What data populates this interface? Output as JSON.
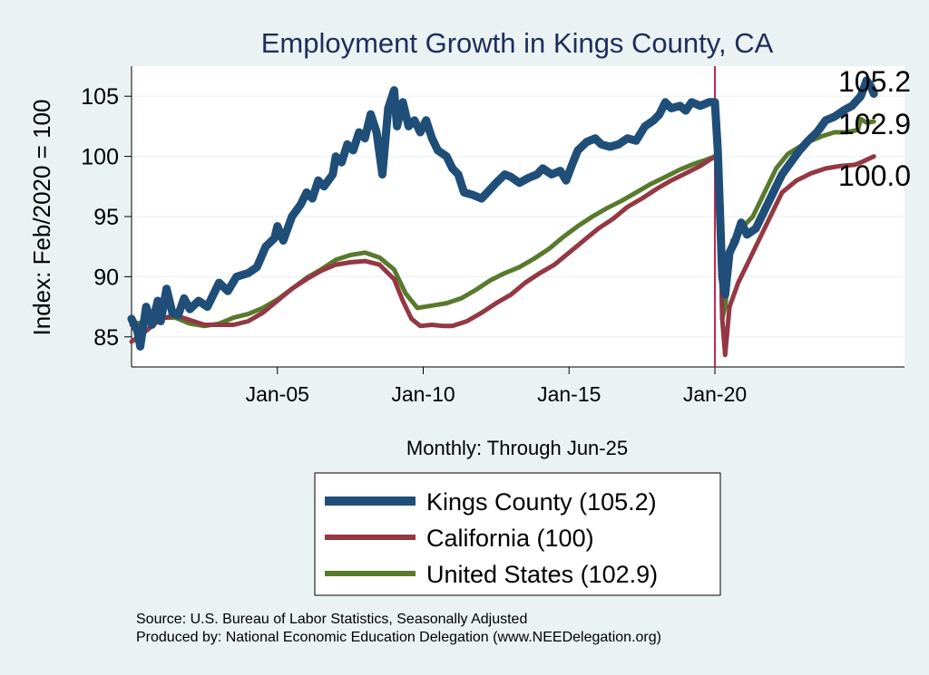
{
  "chart_data": {
    "type": "line",
    "title": "Employment Growth in Kings  County, CA",
    "ylabel": "Index: Feb/2020 = 100",
    "xlabel": "Monthly: Through Jun-25",
    "xlim": [
      2000.0,
      2026.5
    ],
    "ylim": [
      82.5,
      107.5
    ],
    "x_ticks": [
      {
        "x": 2005,
        "label": "Jan-05"
      },
      {
        "x": 2010,
        "label": "Jan-10"
      },
      {
        "x": 2015,
        "label": "Jan-15"
      },
      {
        "x": 2020,
        "label": "Jan-20"
      }
    ],
    "y_ticks": [
      85,
      90,
      95,
      100,
      105
    ],
    "vline_x": 2020.0,
    "end_labels": [
      "105.2",
      "102.9",
      "100.0"
    ],
    "series": [
      {
        "name": "Kings  County (105.2)",
        "color": "#1f4e79",
        "width": 9,
        "points": [
          [
            2000.0,
            86.5
          ],
          [
            2000.2,
            85.5
          ],
          [
            2000.3,
            84.2
          ],
          [
            2000.5,
            87.5
          ],
          [
            2000.7,
            86.0
          ],
          [
            2000.9,
            88.0
          ],
          [
            2001.0,
            86.3
          ],
          [
            2001.2,
            89.0
          ],
          [
            2001.4,
            87.0
          ],
          [
            2001.6,
            86.8
          ],
          [
            2001.8,
            88.2
          ],
          [
            2002.0,
            87.3
          ],
          [
            2002.3,
            88.0
          ],
          [
            2002.6,
            87.5
          ],
          [
            2003.0,
            89.5
          ],
          [
            2003.3,
            88.8
          ],
          [
            2003.6,
            90.0
          ],
          [
            2004.0,
            90.3
          ],
          [
            2004.3,
            90.8
          ],
          [
            2004.6,
            92.5
          ],
          [
            2004.9,
            93.2
          ],
          [
            2005.0,
            94.2
          ],
          [
            2005.2,
            93.0
          ],
          [
            2005.5,
            95.0
          ],
          [
            2005.8,
            96.0
          ],
          [
            2006.0,
            97.0
          ],
          [
            2006.2,
            96.5
          ],
          [
            2006.4,
            98.0
          ],
          [
            2006.6,
            97.5
          ],
          [
            2006.9,
            98.5
          ],
          [
            2007.0,
            100.0
          ],
          [
            2007.2,
            99.5
          ],
          [
            2007.4,
            101.0
          ],
          [
            2007.6,
            100.5
          ],
          [
            2007.8,
            102.0
          ],
          [
            2008.0,
            101.5
          ],
          [
            2008.2,
            103.5
          ],
          [
            2008.4,
            102.0
          ],
          [
            2008.6,
            98.5
          ],
          [
            2008.8,
            104.0
          ],
          [
            2009.0,
            105.5
          ],
          [
            2009.1,
            102.5
          ],
          [
            2009.3,
            104.5
          ],
          [
            2009.5,
            102.5
          ],
          [
            2009.7,
            103.0
          ],
          [
            2009.9,
            102.0
          ],
          [
            2010.1,
            103.0
          ],
          [
            2010.3,
            101.5
          ],
          [
            2010.5,
            100.5
          ],
          [
            2010.8,
            100.0
          ],
          [
            2011.0,
            99.0
          ],
          [
            2011.2,
            98.5
          ],
          [
            2011.4,
            97.0
          ],
          [
            2011.7,
            96.8
          ],
          [
            2012.0,
            96.5
          ],
          [
            2012.2,
            97.0
          ],
          [
            2012.5,
            97.8
          ],
          [
            2012.8,
            98.5
          ],
          [
            2013.0,
            98.3
          ],
          [
            2013.3,
            97.8
          ],
          [
            2013.6,
            98.2
          ],
          [
            2013.9,
            98.5
          ],
          [
            2014.1,
            99.0
          ],
          [
            2014.4,
            98.5
          ],
          [
            2014.7,
            98.8
          ],
          [
            2014.9,
            98.0
          ],
          [
            2015.1,
            99.3
          ],
          [
            2015.3,
            100.5
          ],
          [
            2015.6,
            101.2
          ],
          [
            2015.9,
            101.5
          ],
          [
            2016.1,
            101.0
          ],
          [
            2016.4,
            100.8
          ],
          [
            2016.7,
            101.0
          ],
          [
            2017.0,
            101.5
          ],
          [
            2017.3,
            101.3
          ],
          [
            2017.6,
            102.5
          ],
          [
            2017.9,
            103.0
          ],
          [
            2018.1,
            103.5
          ],
          [
            2018.3,
            104.5
          ],
          [
            2018.5,
            104.0
          ],
          [
            2018.8,
            104.2
          ],
          [
            2019.0,
            103.8
          ],
          [
            2019.2,
            104.5
          ],
          [
            2019.5,
            104.2
          ],
          [
            2019.8,
            104.5
          ],
          [
            2020.0,
            104.5
          ],
          [
            2020.1,
            100.5
          ],
          [
            2020.25,
            90.0
          ],
          [
            2020.35,
            88.5
          ],
          [
            2020.5,
            92.0
          ],
          [
            2020.7,
            93.0
          ],
          [
            2020.9,
            94.5
          ],
          [
            2021.1,
            93.5
          ],
          [
            2021.4,
            94.0
          ],
          [
            2021.7,
            95.5
          ],
          [
            2022.0,
            97.0
          ],
          [
            2022.3,
            98.5
          ],
          [
            2022.6,
            99.5
          ],
          [
            2022.9,
            100.5
          ],
          [
            2023.2,
            101.3
          ],
          [
            2023.5,
            102.0
          ],
          [
            2023.8,
            103.0
          ],
          [
            2024.1,
            103.3
          ],
          [
            2024.4,
            103.8
          ],
          [
            2024.7,
            104.2
          ],
          [
            2025.0,
            105.0
          ],
          [
            2025.2,
            106.3
          ],
          [
            2025.35,
            105.8
          ],
          [
            2025.45,
            105.2
          ]
        ]
      },
      {
        "name": "California (100)",
        "color": "#943843",
        "width": 5,
        "points": [
          [
            2000.0,
            84.6
          ],
          [
            2000.5,
            85.5
          ],
          [
            2001.0,
            86.5
          ],
          [
            2001.5,
            86.8
          ],
          [
            2002.0,
            86.4
          ],
          [
            2002.5,
            86.0
          ],
          [
            2003.0,
            86.0
          ],
          [
            2003.5,
            86.0
          ],
          [
            2004.0,
            86.3
          ],
          [
            2004.5,
            87.0
          ],
          [
            2005.0,
            88.0
          ],
          [
            2005.5,
            89.0
          ],
          [
            2006.0,
            89.8
          ],
          [
            2006.5,
            90.5
          ],
          [
            2007.0,
            91.0
          ],
          [
            2007.5,
            91.2
          ],
          [
            2008.0,
            91.3
          ],
          [
            2008.5,
            91.0
          ],
          [
            2009.0,
            89.8
          ],
          [
            2009.3,
            88.0
          ],
          [
            2009.6,
            86.5
          ],
          [
            2009.9,
            85.9
          ],
          [
            2010.3,
            86.0
          ],
          [
            2010.7,
            85.9
          ],
          [
            2011.0,
            85.9
          ],
          [
            2011.5,
            86.3
          ],
          [
            2012.0,
            87.0
          ],
          [
            2012.5,
            87.8
          ],
          [
            2013.0,
            88.5
          ],
          [
            2013.5,
            89.5
          ],
          [
            2014.0,
            90.3
          ],
          [
            2014.5,
            91.0
          ],
          [
            2015.0,
            92.0
          ],
          [
            2015.5,
            93.0
          ],
          [
            2016.0,
            94.0
          ],
          [
            2016.5,
            94.8
          ],
          [
            2017.0,
            95.8
          ],
          [
            2017.5,
            96.5
          ],
          [
            2018.0,
            97.3
          ],
          [
            2018.5,
            98.0
          ],
          [
            2019.0,
            98.6
          ],
          [
            2019.5,
            99.2
          ],
          [
            2020.0,
            100.0
          ],
          [
            2020.15,
            99.0
          ],
          [
            2020.25,
            86.5
          ],
          [
            2020.35,
            83.5
          ],
          [
            2020.5,
            87.5
          ],
          [
            2020.8,
            89.5
          ],
          [
            2021.1,
            91.0
          ],
          [
            2021.5,
            93.0
          ],
          [
            2021.9,
            95.0
          ],
          [
            2022.3,
            97.0
          ],
          [
            2022.8,
            98.0
          ],
          [
            2023.3,
            98.6
          ],
          [
            2023.8,
            99.0
          ],
          [
            2024.3,
            99.2
          ],
          [
            2024.8,
            99.3
          ],
          [
            2025.1,
            99.6
          ],
          [
            2025.45,
            100.0
          ]
        ]
      },
      {
        "name": "United States (102.9)",
        "color": "#587a2d",
        "width": 5,
        "points": [
          [
            2000.0,
            86.0
          ],
          [
            2000.5,
            86.3
          ],
          [
            2001.0,
            86.6
          ],
          [
            2001.5,
            86.6
          ],
          [
            2002.0,
            86.1
          ],
          [
            2002.5,
            85.9
          ],
          [
            2003.0,
            86.1
          ],
          [
            2003.5,
            86.6
          ],
          [
            2004.0,
            86.9
          ],
          [
            2004.5,
            87.4
          ],
          [
            2005.0,
            88.1
          ],
          [
            2005.5,
            89.0
          ],
          [
            2006.0,
            89.9
          ],
          [
            2006.5,
            90.6
          ],
          [
            2007.0,
            91.4
          ],
          [
            2007.5,
            91.8
          ],
          [
            2008.0,
            92.0
          ],
          [
            2008.5,
            91.6
          ],
          [
            2009.0,
            90.6
          ],
          [
            2009.4,
            88.6
          ],
          [
            2009.8,
            87.4
          ],
          [
            2010.3,
            87.6
          ],
          [
            2010.8,
            87.8
          ],
          [
            2011.3,
            88.2
          ],
          [
            2011.8,
            88.9
          ],
          [
            2012.3,
            89.7
          ],
          [
            2012.8,
            90.3
          ],
          [
            2013.3,
            90.8
          ],
          [
            2013.8,
            91.5
          ],
          [
            2014.3,
            92.3
          ],
          [
            2014.8,
            93.3
          ],
          [
            2015.3,
            94.2
          ],
          [
            2015.8,
            95.0
          ],
          [
            2016.3,
            95.7
          ],
          [
            2016.8,
            96.3
          ],
          [
            2017.3,
            97.0
          ],
          [
            2017.8,
            97.7
          ],
          [
            2018.3,
            98.3
          ],
          [
            2018.8,
            98.9
          ],
          [
            2019.3,
            99.4
          ],
          [
            2019.8,
            99.8
          ],
          [
            2020.0,
            100.0
          ],
          [
            2020.15,
            98.8
          ],
          [
            2020.25,
            86.5
          ],
          [
            2020.35,
            87.5
          ],
          [
            2020.6,
            93.0
          ],
          [
            2020.9,
            94.0
          ],
          [
            2021.3,
            95.0
          ],
          [
            2021.7,
            97.0
          ],
          [
            2022.1,
            99.0
          ],
          [
            2022.5,
            100.2
          ],
          [
            2022.9,
            100.8
          ],
          [
            2023.3,
            101.3
          ],
          [
            2023.7,
            101.7
          ],
          [
            2024.1,
            102.0
          ],
          [
            2024.5,
            102.0
          ],
          [
            2024.9,
            102.2
          ],
          [
            2025.0,
            103.1
          ],
          [
            2025.2,
            102.8
          ],
          [
            2025.45,
            102.9
          ]
        ]
      }
    ],
    "source_note": "Source: U.S. Bureau of Labor Statistics, Seasonally Adjusted",
    "produced_by": "Produced by: National Economic Education Delegation (www.NEEDelegation.org)"
  }
}
